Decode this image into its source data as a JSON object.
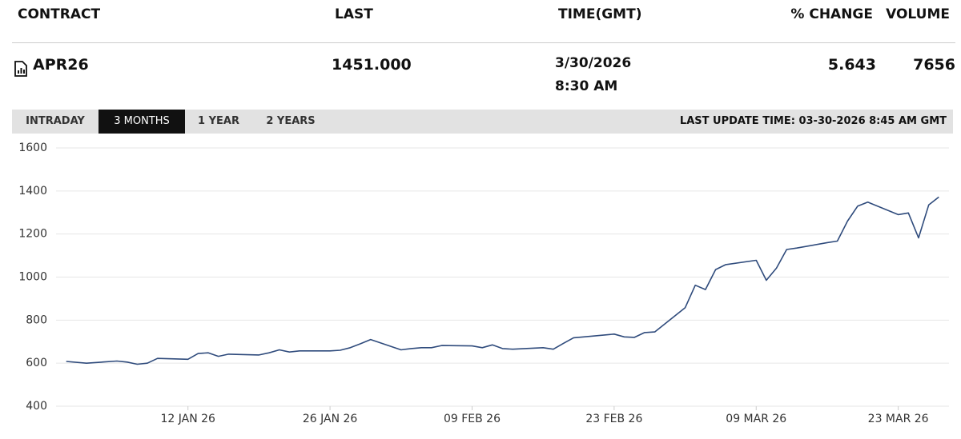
{
  "table": {
    "columns": [
      "CONTRACT",
      "LAST",
      "TIME(GMT)",
      "% CHANGE",
      "VOLUME"
    ],
    "row": {
      "contract": "APR26",
      "last": "1451.000",
      "date": "3/30/2026",
      "time": "8:30 AM",
      "change": "5.643",
      "volume": "7656"
    }
  },
  "tabs": [
    {
      "label": "INTRADAY",
      "active": false
    },
    {
      "label": "3 MONTHS",
      "active": true
    },
    {
      "label": "1 YEAR",
      "active": false
    },
    {
      "label": "2 YEARS",
      "active": false
    }
  ],
  "last_update": "LAST UPDATE TIME: 03-30-2026 8:45 AM GMT",
  "chart_data": {
    "type": "line",
    "color": "#2f4b7c",
    "grid": true,
    "x": [
      "2025-12-31",
      "2026-01-02",
      "2026-01-05",
      "2026-01-06",
      "2026-01-07",
      "2026-01-08",
      "2026-01-09",
      "2026-01-12",
      "2026-01-13",
      "2026-01-14",
      "2026-01-15",
      "2026-01-16",
      "2026-01-19",
      "2026-01-20",
      "2026-01-21",
      "2026-01-22",
      "2026-01-23",
      "2026-01-26",
      "2026-01-27",
      "2026-01-28",
      "2026-01-29",
      "2026-01-30",
      "2026-02-02",
      "2026-02-03",
      "2026-02-04",
      "2026-02-05",
      "2026-02-06",
      "2026-02-09",
      "2026-02-10",
      "2026-02-11",
      "2026-02-12",
      "2026-02-13",
      "2026-02-16",
      "2026-02-17",
      "2026-02-18",
      "2026-02-19",
      "2026-02-20",
      "2026-02-23",
      "2026-02-24",
      "2026-02-25",
      "2026-02-26",
      "2026-02-27",
      "2026-03-02",
      "2026-03-03",
      "2026-03-04",
      "2026-03-05",
      "2026-03-06",
      "2026-03-09",
      "2026-03-10",
      "2026-03-11",
      "2026-03-12",
      "2026-03-13",
      "2026-03-16",
      "2026-03-17",
      "2026-03-18",
      "2026-03-19",
      "2026-03-20",
      "2026-03-23",
      "2026-03-24",
      "2026-03-25",
      "2026-03-26",
      "2026-03-27"
    ],
    "values": [
      608,
      600,
      610,
      605,
      595,
      600,
      622,
      618,
      645,
      648,
      632,
      642,
      638,
      648,
      662,
      652,
      657,
      657,
      660,
      672,
      690,
      710,
      662,
      668,
      672,
      672,
      682,
      680,
      672,
      685,
      668,
      665,
      672,
      665,
      692,
      718,
      722,
      735,
      722,
      720,
      742,
      745,
      858,
      962,
      942,
      1035,
      1058,
      1078,
      985,
      1042,
      1128,
      1135,
      1160,
      1167,
      1260,
      1330,
      1348,
      1290,
      1298,
      1182,
      1335,
      1372
    ],
    "xlim": [
      "2025-12-30",
      "2026-03-28"
    ],
    "xticks": [
      {
        "value": "2026-01-12",
        "label": "12 JAN 26"
      },
      {
        "value": "2026-01-26",
        "label": "26 JAN 26"
      },
      {
        "value": "2026-02-09",
        "label": "09 FEB 26"
      },
      {
        "value": "2026-02-23",
        "label": "23 FEB 26"
      },
      {
        "value": "2026-03-09",
        "label": "09 MAR 26"
      },
      {
        "value": "2026-03-23",
        "label": "23 MAR 26"
      }
    ],
    "ylim": [
      400,
      1600
    ],
    "yticks": [
      400,
      600,
      800,
      1000,
      1200,
      1400,
      1600
    ]
  }
}
